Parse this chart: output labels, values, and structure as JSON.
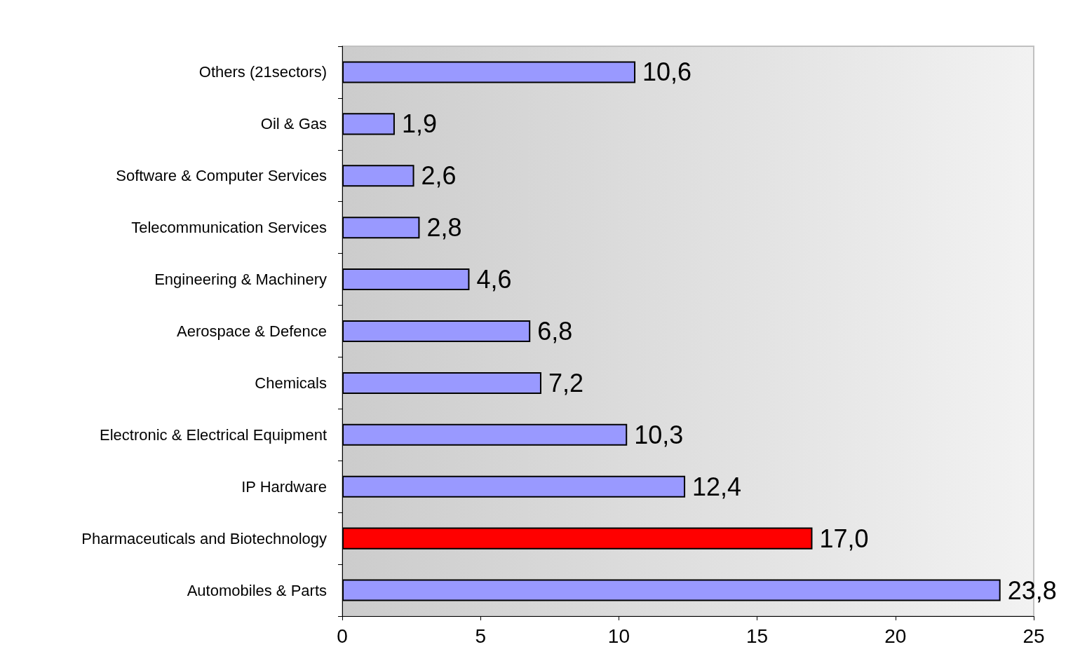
{
  "chart_data": {
    "type": "bar",
    "orientation": "horizontal",
    "categories": [
      "Others (21sectors)",
      "Oil & Gas",
      "Software & Computer Services",
      "Telecommunication Services",
      "Engineering & Machinery",
      "Aerospace & Defence",
      "Chemicals",
      "Electronic & Electrical Equipment",
      "IP Hardware",
      "Pharmaceuticals and Biotechnology",
      "Automobiles & Parts"
    ],
    "values": [
      10.6,
      1.9,
      2.6,
      2.8,
      4.6,
      6.8,
      7.2,
      10.3,
      12.4,
      17.0,
      23.8
    ],
    "value_labels": [
      "10,6",
      "1,9",
      "2,6",
      "2,8",
      "4,6",
      "6,8",
      "7,2",
      "10,3",
      "12,4",
      "17,0",
      "23,8"
    ],
    "colors": [
      "#9999ff",
      "#9999ff",
      "#9999ff",
      "#9999ff",
      "#9999ff",
      "#9999ff",
      "#9999ff",
      "#9999ff",
      "#9999ff",
      "#ff0000",
      "#9999ff"
    ],
    "xlim": [
      0,
      25
    ],
    "xticks": [
      0,
      5,
      10,
      15,
      20,
      25
    ],
    "grid": false
  }
}
